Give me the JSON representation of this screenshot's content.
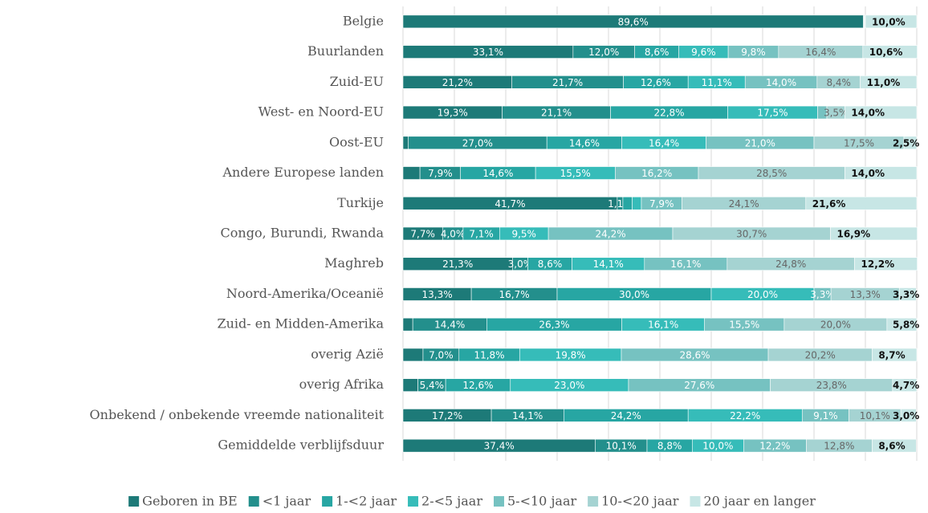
{
  "chart_data": {
    "type": "stacked_barh",
    "categories": [
      "Belgie",
      "Buurlanden",
      "Zuid-EU",
      "West- en Noord-EU",
      "Oost-EU",
      "Andere Europese landen",
      "Turkije",
      "Congo, Burundi, Rwanda",
      "Maghreb",
      "Noord-Amerika/Oceanië",
      "Zuid- en Midden-Amerika",
      "overig Azië",
      "overig Afrika",
      "Onbekend / onbekende vreemde nationaliteit",
      "Gemiddelde verblijfsduur"
    ],
    "series": [
      {
        "name": "Geboren in BE",
        "color": "#1d7a78",
        "values": [
          89.6,
          33.1,
          21.2,
          19.3,
          1.0,
          3.3,
          41.7,
          7.7,
          21.3,
          13.3,
          1.9,
          3.9,
          2.9,
          17.2,
          37.4
        ],
        "value_labels": [
          "89,6%",
          "33,1%",
          "21,2%",
          "19,3%",
          null,
          null,
          "41,7%",
          "7,7%",
          "21,3%",
          "13,3%",
          null,
          null,
          null,
          "17,2%",
          "37,4%"
        ]
      },
      {
        "name": "<1 jaar",
        "color": "#238f8c",
        "values": [
          0.1,
          12.0,
          21.7,
          21.1,
          27.0,
          7.9,
          1.1,
          4.0,
          3.0,
          16.7,
          14.4,
          7.0,
          5.4,
          14.1,
          10.1
        ],
        "value_labels": [
          null,
          "12,0%",
          "21,7%",
          "21,1%",
          "27,0%",
          "7,9%",
          "1,1%",
          "4,0%",
          "3,0%",
          "16,7%",
          "14,4%",
          "7,0%",
          "5,4%",
          "14,1%",
          "10,1%"
        ]
      },
      {
        "name": "1-<2 jaar",
        "color": "#27a6a3",
        "values": [
          0.1,
          8.6,
          12.6,
          22.8,
          14.6,
          14.6,
          1.8,
          7.1,
          8.6,
          30.0,
          26.3,
          11.8,
          12.6,
          24.2,
          8.8
        ],
        "value_labels": [
          null,
          "8,6%",
          "12,6%",
          "22,8%",
          "14,6%",
          "14,6%",
          null,
          "7,1%",
          "8,6%",
          "30,0%",
          "26,3%",
          "11,8%",
          "12,6%",
          "24,2%",
          "8,8%"
        ]
      },
      {
        "name": "2-<5 jaar",
        "color": "#36bcb9",
        "values": [
          0.1,
          9.6,
          11.1,
          17.5,
          16.4,
          15.5,
          1.8,
          9.5,
          14.1,
          20.0,
          16.1,
          19.8,
          23.0,
          22.2,
          10.0
        ],
        "value_labels": [
          null,
          "9,6%",
          "11,1%",
          "17,5%",
          "16,4%",
          "15,5%",
          null,
          "9,5%",
          "14,1%",
          "20,0%",
          "16,1%",
          "19,8%",
          "23,0%",
          "22,2%",
          "10,0%"
        ]
      },
      {
        "name": "5-<10 jaar",
        "color": "#76c2c1",
        "values": [
          0.1,
          9.8,
          14.0,
          1.8,
          21.0,
          16.2,
          7.9,
          24.2,
          16.1,
          3.3,
          15.5,
          28.6,
          27.6,
          9.1,
          12.2
        ],
        "value_labels": [
          null,
          "9,8%",
          "14,0%",
          null,
          "21,0%",
          "16,2%",
          "7,9%",
          "24,2%",
          "16,1%",
          "3,3%",
          "15,5%",
          "28,6%",
          "27,6%",
          "9,1%",
          "12,2%"
        ]
      },
      {
        "name": "10-<20 jaar",
        "color": "#a5d3d2",
        "values": [
          0,
          16.4,
          8.4,
          3.5,
          17.5,
          28.5,
          24.1,
          30.7,
          24.8,
          13.3,
          20.0,
          20.2,
          23.8,
          10.1,
          12.8
        ],
        "value_labels": [
          null,
          "16,4%",
          "8,4%",
          "3,5%",
          "17,5%",
          "28,5%",
          "24,1%",
          "30,7%",
          "24,8%",
          "13,3%",
          "20,0%",
          "20,2%",
          "23,8%",
          "10,1%",
          "12,8%"
        ]
      },
      {
        "name": "20 jaar en langer",
        "color": "#c7e6e5",
        "values": [
          10.0,
          10.6,
          11.0,
          14.0,
          2.5,
          14.0,
          21.6,
          16.9,
          12.2,
          3.3,
          5.8,
          8.7,
          4.7,
          3.0,
          8.6
        ],
        "value_labels": [
          "10,0%",
          "10,6%",
          "11,0%",
          "14,0%",
          "2,5%",
          "14,0%",
          "21,6%",
          "16,9%",
          "12,2%",
          "3,3%",
          "5,8%",
          "8,7%",
          "4,7%",
          "3,0%",
          "8,6%"
        ]
      }
    ],
    "xlim": [
      0,
      100
    ],
    "xticks": [
      0,
      10,
      20,
      30,
      40,
      50,
      60,
      70,
      80,
      90,
      100
    ],
    "grid": true,
    "legend": "bottom"
  }
}
